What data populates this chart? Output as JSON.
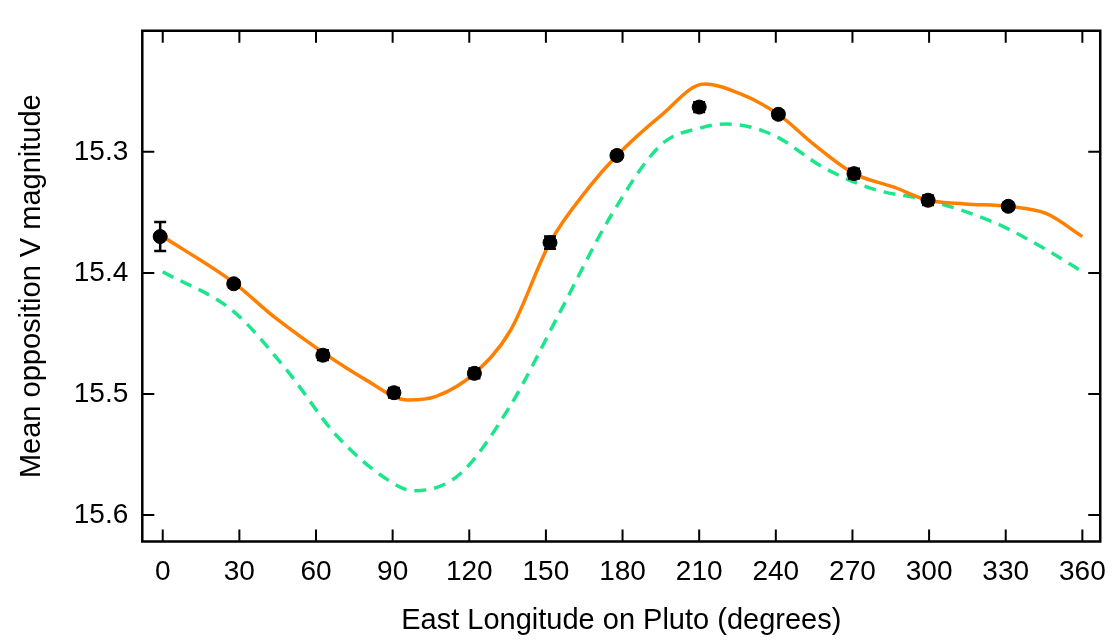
{
  "chart_data": {
    "type": "scatter",
    "xlabel": "East Longitude on Pluto (degrees)",
    "ylabel": "Mean opposition V magnitude",
    "xlim": [
      -8,
      367
    ],
    "xticks": [
      0,
      30,
      60,
      90,
      120,
      150,
      180,
      210,
      240,
      270,
      300,
      330,
      360
    ],
    "ylim": [
      15.622,
      15.2
    ],
    "yticks": [
      15.3,
      15.4,
      15.5,
      15.6
    ],
    "grid": false,
    "legend": false,
    "marker": "circle",
    "series": [
      {
        "type": "line",
        "color": "#ff7f00",
        "line_style": "solid",
        "marker": "none",
        "x": [
          0,
          27.8,
          44,
          80,
          96,
          107,
          122,
          136,
          151.6,
          167,
          177.8,
          195,
          212,
          226,
          241,
          255,
          270.6,
          286,
          299.6,
          314,
          331,
          346,
          360
        ],
        "values": [
          15.37,
          15.408,
          15.437,
          15.489,
          15.505,
          15.502,
          15.483,
          15.448,
          15.375,
          15.329,
          15.303,
          15.27,
          15.244,
          15.252,
          15.269,
          15.294,
          15.318,
          15.329,
          15.34,
          15.343,
          15.345,
          15.351,
          15.37
        ]
      },
      {
        "type": "line",
        "color": "#1de58c",
        "line_style": "dashed",
        "marker": "none",
        "x": [
          0,
          27.8,
          48.4,
          68.3,
          88.1,
          98,
          115.9,
          135.7,
          155.6,
          175.4,
          195.2,
          211,
          220.9,
          238.9,
          258.7,
          278.6,
          299.6,
          326.2,
          346,
          360
        ],
        "values": [
          15.399,
          15.432,
          15.48,
          15.535,
          15.571,
          15.58,
          15.567,
          15.511,
          15.432,
          15.353,
          15.294,
          15.28,
          15.277,
          15.286,
          15.313,
          15.331,
          15.34,
          15.359,
          15.381,
          15.399
        ]
      },
      {
        "color": "#000000",
        "x": [
          -1,
          27.8,
          62.7,
          90.5,
          122,
          151.6,
          177.8,
          210,
          241,
          270.6,
          299.6,
          331
        ],
        "values": [
          15.37,
          15.409,
          15.468,
          15.499,
          15.483,
          15.375,
          15.303,
          15.263,
          15.269,
          15.318,
          15.34,
          15.345
        ],
        "errors": [
          0.012,
          0.003,
          0.004,
          0.004,
          0.004,
          0.005,
          0.003,
          0.004,
          0.003,
          0.004,
          0.004,
          0.003
        ]
      }
    ]
  }
}
